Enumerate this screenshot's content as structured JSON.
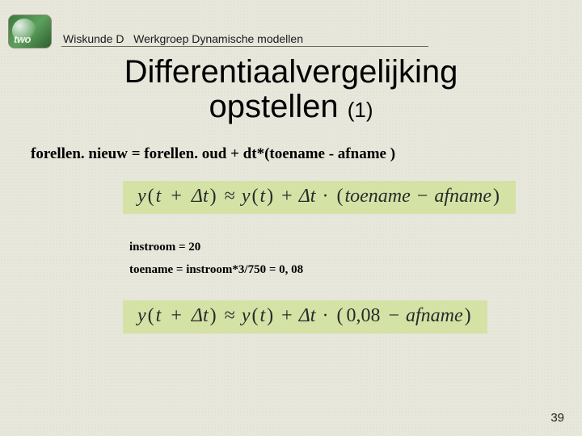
{
  "header": {
    "logo_text": "two",
    "course": "Wiskunde D",
    "group": "Werkgroep Dynamische modellen"
  },
  "title": {
    "line1": "Differentiaalvergelijking",
    "line2_a": "opstellen ",
    "line2_b": "(1)"
  },
  "equation_text": "forellen. nieuw = forellen. oud + dt*(toename - afname )",
  "formula1": {
    "lhs_y": "y",
    "lhs_open": "(",
    "lhs_t": "t",
    "lhs_plus": "+",
    "lhs_dt": "Δt",
    "lhs_close": ")",
    "approx": "≈",
    "rhs_y": "y",
    "rhs_open": "(",
    "rhs_t": "t",
    "rhs_close": ")",
    "plus": "+",
    "dt": "Δt",
    "dot": "·",
    "paren_open": "(",
    "term1": "toename",
    "minus": "−",
    "term2": "afname",
    "paren_close": ")"
  },
  "note1": "instroom = 20",
  "note2": "toename = instroom*3/750 = 0, 08",
  "formula2": {
    "term1": "0,08",
    "term2": "afname"
  },
  "page_number": "39",
  "colors": {
    "bg": "#e7e7db",
    "formula_bg": "#d4e2a6"
  }
}
